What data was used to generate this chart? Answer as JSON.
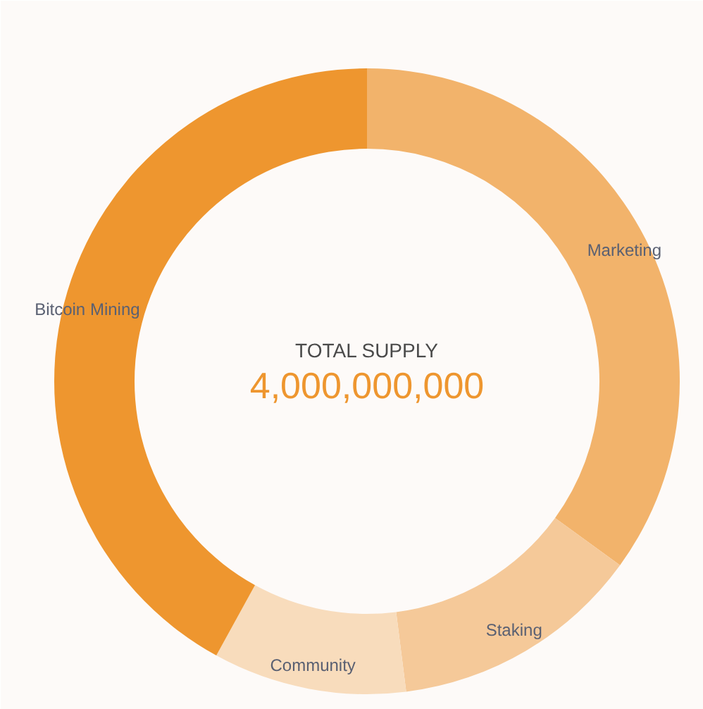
{
  "chart_data": {
    "type": "donut",
    "title": "TOTAL SUPPLY",
    "subtitle": "4,000,000,000",
    "categories": [
      "Marketing",
      "Staking",
      "Community",
      "Bitcoin Mining"
    ],
    "values": [
      35,
      13,
      10,
      42
    ],
    "colors": [
      "#f2b36b",
      "#f5c999",
      "#f8dcbc",
      "#ee962f"
    ]
  }
}
